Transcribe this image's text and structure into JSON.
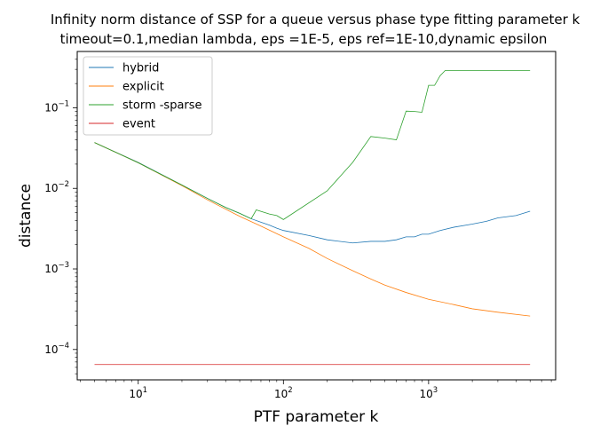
{
  "chart_data": {
    "type": "line",
    "title": "Infinity norm distance of SSP for a queue versus phase type fitting parameter k",
    "subtitle": "timeout=0.1,median lambda, eps =1E-5, eps ref=1E-10,dynamic epsilon",
    "xlabel": "PTF parameter k",
    "ylabel": "distance",
    "xscale": "log",
    "yscale": "log",
    "xlim": [
      3.8,
      7500
    ],
    "ylim": [
      4.2e-05,
      0.5
    ],
    "x_ticks": [
      {
        "value": 10,
        "base": "10",
        "exp": "1"
      },
      {
        "value": 100,
        "base": "10",
        "exp": "2"
      },
      {
        "value": 1000,
        "base": "10",
        "exp": "3"
      }
    ],
    "y_ticks": [
      {
        "value": 0.0001,
        "base": "10",
        "exp": "−4"
      },
      {
        "value": 0.001,
        "base": "10",
        "exp": "−3"
      },
      {
        "value": 0.01,
        "base": "10",
        "exp": "−2"
      },
      {
        "value": 0.1,
        "base": "10",
        "exp": "−1"
      }
    ],
    "grid": false,
    "legend_position": "top-left",
    "series": [
      {
        "name": "hybrid",
        "color": "#1f77b4",
        "points": [
          [
            5,
            0.037
          ],
          [
            10,
            0.021
          ],
          [
            20,
            0.011
          ],
          [
            30,
            0.0075
          ],
          [
            40,
            0.0058
          ],
          [
            50,
            0.0049
          ],
          [
            60,
            0.0042
          ],
          [
            70,
            0.0038
          ],
          [
            80,
            0.0035
          ],
          [
            90,
            0.0032
          ],
          [
            100,
            0.003
          ],
          [
            150,
            0.0026
          ],
          [
            200,
            0.0023
          ],
          [
            300,
            0.0021
          ],
          [
            400,
            0.0022
          ],
          [
            500,
            0.0022
          ],
          [
            600,
            0.0023
          ],
          [
            700,
            0.0025
          ],
          [
            800,
            0.0025
          ],
          [
            900,
            0.0027
          ],
          [
            1000,
            0.0027
          ],
          [
            1200,
            0.003
          ],
          [
            1500,
            0.0033
          ],
          [
            2000,
            0.0036
          ],
          [
            2500,
            0.0039
          ],
          [
            3000,
            0.0043
          ],
          [
            4000,
            0.0046
          ],
          [
            5000,
            0.0052
          ]
        ]
      },
      {
        "name": "explicit",
        "color": "#ff7f0e",
        "points": [
          [
            5,
            0.037
          ],
          [
            10,
            0.0208
          ],
          [
            20,
            0.0108
          ],
          [
            30,
            0.0072
          ],
          [
            50,
            0.0045
          ],
          [
            70,
            0.0034
          ],
          [
            100,
            0.0025
          ],
          [
            150,
            0.0018
          ],
          [
            200,
            0.00135
          ],
          [
            300,
            0.00095
          ],
          [
            400,
            0.00075
          ],
          [
            500,
            0.00063
          ],
          [
            700,
            0.00051
          ],
          [
            1000,
            0.00042
          ],
          [
            1500,
            0.00036
          ],
          [
            2000,
            0.00032
          ],
          [
            3000,
            0.00029
          ],
          [
            5000,
            0.00026
          ]
        ]
      },
      {
        "name": "storm -sparse",
        "color": "#2ca02c",
        "points": [
          [
            5,
            0.037
          ],
          [
            10,
            0.0208
          ],
          [
            20,
            0.011
          ],
          [
            30,
            0.0075
          ],
          [
            40,
            0.0058
          ],
          [
            50,
            0.0049
          ],
          [
            60,
            0.0042
          ],
          [
            65,
            0.0054
          ],
          [
            80,
            0.0048
          ],
          [
            90,
            0.0046
          ],
          [
            100,
            0.0041
          ],
          [
            200,
            0.0093
          ],
          [
            300,
            0.021
          ],
          [
            400,
            0.044
          ],
          [
            500,
            0.042
          ],
          [
            600,
            0.04
          ],
          [
            700,
            0.091
          ],
          [
            800,
            0.09
          ],
          [
            900,
            0.088
          ],
          [
            1000,
            0.19
          ],
          [
            1100,
            0.19
          ],
          [
            1200,
            0.25
          ],
          [
            1300,
            0.29
          ],
          [
            2000,
            0.29
          ],
          [
            5000,
            0.29
          ]
        ]
      },
      {
        "name": "event",
        "color": "#d62728",
        "points": [
          [
            5,
            6.5e-05
          ],
          [
            5000,
            6.5e-05
          ]
        ]
      }
    ]
  }
}
